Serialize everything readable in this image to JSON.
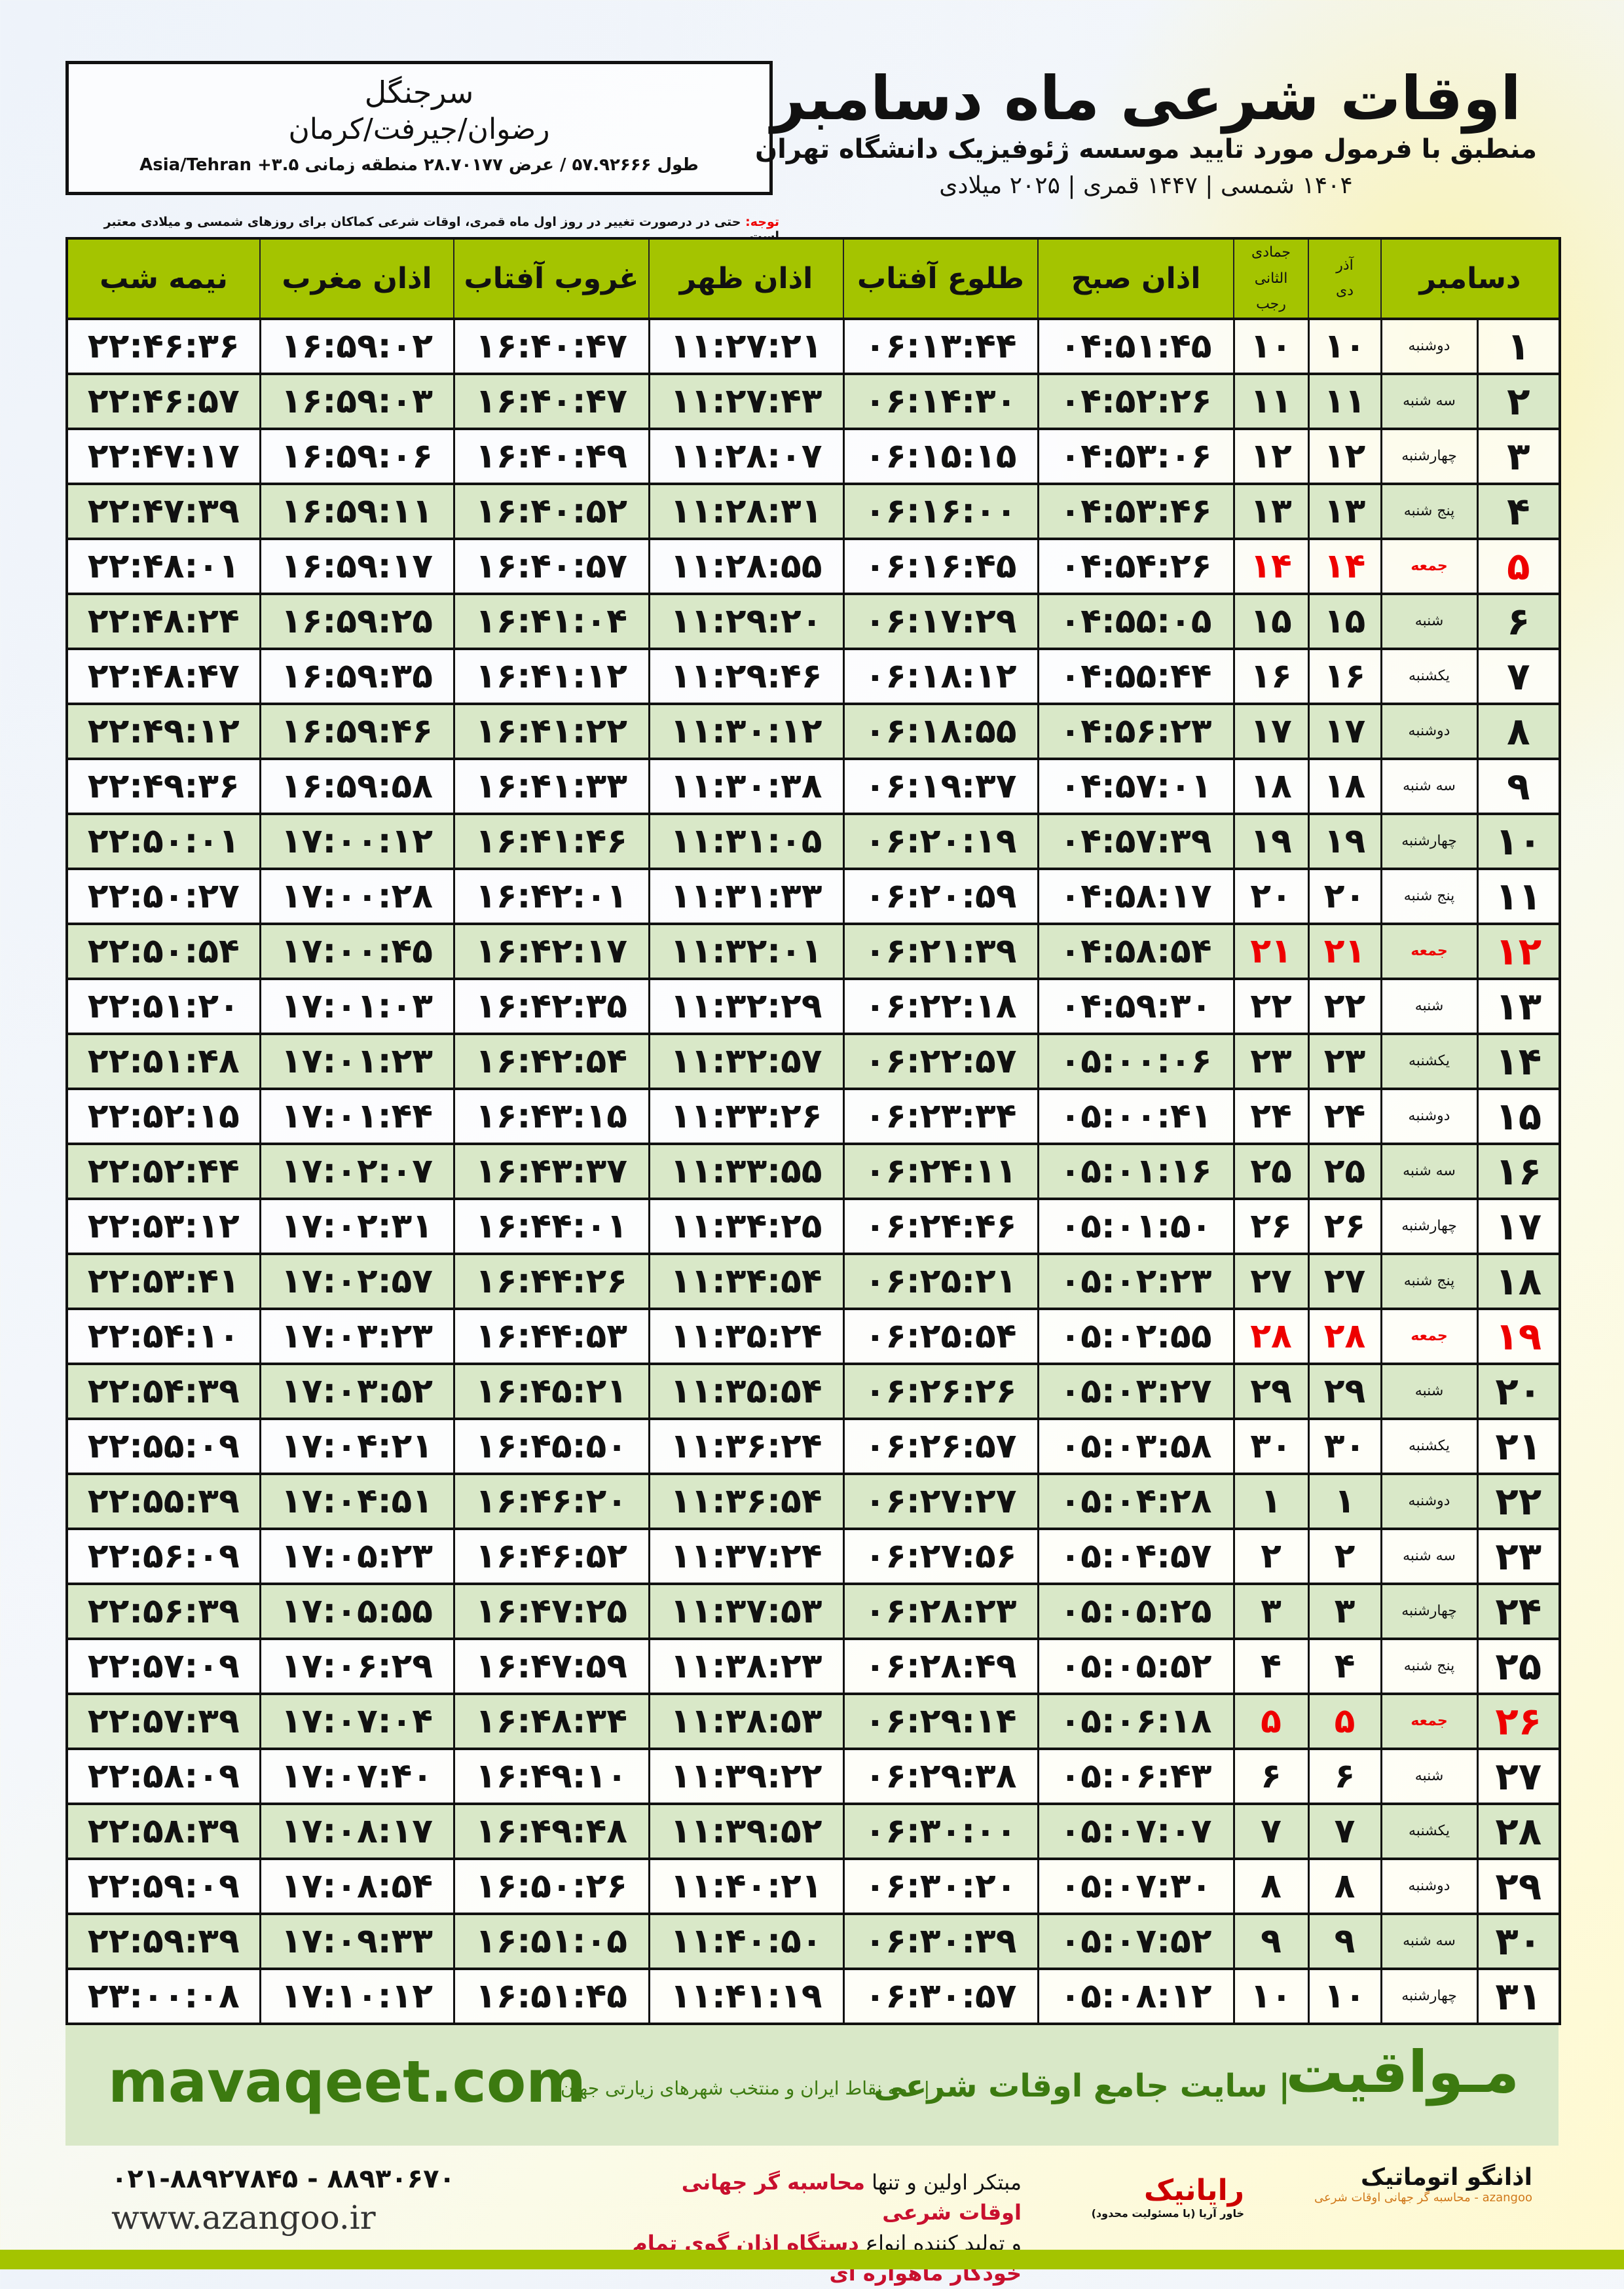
{
  "header": {
    "title": "اوقات شرعی ماه دسامبر",
    "subtitle": "منطبق با فرمول مورد تایید موسسه ژئوفیزیک دانشگاه تهران",
    "years": "۱۴۰۴ شمسی | ۱۴۴۷ قمری | ۲۰۲۵ میلادی"
  },
  "location": {
    "city": "سرجنگل",
    "region": "رضوان/جیرفت/کرمان",
    "coords": "طول ۵۷.۹۲۶۶۶ / عرض ۲۸.۷۰۱۷۷ منطقه زمانی ۳.۵+ Asia/Tehran"
  },
  "note": {
    "label": "توجه:",
    "text": " حتی در درصورت تغییر در روز اول ماه قمری، اوقات شرعی کماکان برای روزهای شمسی و میلادی معتبر است."
  },
  "columns": {
    "day": "دسامبر",
    "shamsi_month": "آذر",
    "shamsi_next": "دی",
    "hijri_month": "جمادی الثانی",
    "hijri_next": "رجب",
    "fajr": "اذان صبح",
    "sunrise": "طلوع آفتاب",
    "dhuhr": "اذان ظهر",
    "sunset": "غروب آفتاب",
    "maghrib": "اذان مغرب",
    "midnight": "نیمه شب"
  },
  "colors": {
    "header_green": "#a4c400",
    "row_green": "#d9e8c8",
    "friday_red": "#e00000",
    "brand_green": "#3c7a10"
  },
  "rows": [
    [
      "۱",
      "دوشنبه",
      "۱۰",
      "۱۰",
      "۰۴:۵۱:۴۵",
      "۰۶:۱۳:۴۴",
      "۱۱:۲۷:۲۱",
      "۱۶:۴۰:۴۷",
      "۱۶:۵۹:۰۲",
      "۲۲:۴۶:۳۶"
    ],
    [
      "۲",
      "سه شنبه",
      "۱۱",
      "۱۱",
      "۰۴:۵۲:۲۶",
      "۰۶:۱۴:۳۰",
      "۱۱:۲۷:۴۳",
      "۱۶:۴۰:۴۷",
      "۱۶:۵۹:۰۳",
      "۲۲:۴۶:۵۷"
    ],
    [
      "۳",
      "چهارشنبه",
      "۱۲",
      "۱۲",
      "۰۴:۵۳:۰۶",
      "۰۶:۱۵:۱۵",
      "۱۱:۲۸:۰۷",
      "۱۶:۴۰:۴۹",
      "۱۶:۵۹:۰۶",
      "۲۲:۴۷:۱۷"
    ],
    [
      "۴",
      "پنج شنبه",
      "۱۳",
      "۱۳",
      "۰۴:۵۳:۴۶",
      "۰۶:۱۶:۰۰",
      "۱۱:۲۸:۳۱",
      "۱۶:۴۰:۵۲",
      "۱۶:۵۹:۱۱",
      "۲۲:۴۷:۳۹"
    ],
    [
      "۵",
      "جمعه",
      "۱۴",
      "۱۴",
      "۰۴:۵۴:۲۶",
      "۰۶:۱۶:۴۵",
      "۱۱:۲۸:۵۵",
      "۱۶:۴۰:۵۷",
      "۱۶:۵۹:۱۷",
      "۲۲:۴۸:۰۱"
    ],
    [
      "۶",
      "شنبه",
      "۱۵",
      "۱۵",
      "۰۴:۵۵:۰۵",
      "۰۶:۱۷:۲۹",
      "۱۱:۲۹:۲۰",
      "۱۶:۴۱:۰۴",
      "۱۶:۵۹:۲۵",
      "۲۲:۴۸:۲۴"
    ],
    [
      "۷",
      "یکشنبه",
      "۱۶",
      "۱۶",
      "۰۴:۵۵:۴۴",
      "۰۶:۱۸:۱۲",
      "۱۱:۲۹:۴۶",
      "۱۶:۴۱:۱۲",
      "۱۶:۵۹:۳۵",
      "۲۲:۴۸:۴۷"
    ],
    [
      "۸",
      "دوشنبه",
      "۱۷",
      "۱۷",
      "۰۴:۵۶:۲۳",
      "۰۶:۱۸:۵۵",
      "۱۱:۳۰:۱۲",
      "۱۶:۴۱:۲۲",
      "۱۶:۵۹:۴۶",
      "۲۲:۴۹:۱۲"
    ],
    [
      "۹",
      "سه شنبه",
      "۱۸",
      "۱۸",
      "۰۴:۵۷:۰۱",
      "۰۶:۱۹:۳۷",
      "۱۱:۳۰:۳۸",
      "۱۶:۴۱:۳۳",
      "۱۶:۵۹:۵۸",
      "۲۲:۴۹:۳۶"
    ],
    [
      "۱۰",
      "چهارشنبه",
      "۱۹",
      "۱۹",
      "۰۴:۵۷:۳۹",
      "۰۶:۲۰:۱۹",
      "۱۱:۳۱:۰۵",
      "۱۶:۴۱:۴۶",
      "۱۷:۰۰:۱۲",
      "۲۲:۵۰:۰۱"
    ],
    [
      "۱۱",
      "پنج شنبه",
      "۲۰",
      "۲۰",
      "۰۴:۵۸:۱۷",
      "۰۶:۲۰:۵۹",
      "۱۱:۳۱:۳۳",
      "۱۶:۴۲:۰۱",
      "۱۷:۰۰:۲۸",
      "۲۲:۵۰:۲۷"
    ],
    [
      "۱۲",
      "جمعه",
      "۲۱",
      "۲۱",
      "۰۴:۵۸:۵۴",
      "۰۶:۲۱:۳۹",
      "۱۱:۳۲:۰۱",
      "۱۶:۴۲:۱۷",
      "۱۷:۰۰:۴۵",
      "۲۲:۵۰:۵۴"
    ],
    [
      "۱۳",
      "شنبه",
      "۲۲",
      "۲۲",
      "۰۴:۵۹:۳۰",
      "۰۶:۲۲:۱۸",
      "۱۱:۳۲:۲۹",
      "۱۶:۴۲:۳۵",
      "۱۷:۰۱:۰۳",
      "۲۲:۵۱:۲۰"
    ],
    [
      "۱۴",
      "یکشنبه",
      "۲۳",
      "۲۳",
      "۰۵:۰۰:۰۶",
      "۰۶:۲۲:۵۷",
      "۱۱:۳۲:۵۷",
      "۱۶:۴۲:۵۴",
      "۱۷:۰۱:۲۳",
      "۲۲:۵۱:۴۸"
    ],
    [
      "۱۵",
      "دوشنبه",
      "۲۴",
      "۲۴",
      "۰۵:۰۰:۴۱",
      "۰۶:۲۳:۳۴",
      "۱۱:۳۳:۲۶",
      "۱۶:۴۳:۱۵",
      "۱۷:۰۱:۴۴",
      "۲۲:۵۲:۱۵"
    ],
    [
      "۱۶",
      "سه شنبه",
      "۲۵",
      "۲۵",
      "۰۵:۰۱:۱۶",
      "۰۶:۲۴:۱۱",
      "۱۱:۳۳:۵۵",
      "۱۶:۴۳:۳۷",
      "۱۷:۰۲:۰۷",
      "۲۲:۵۲:۴۴"
    ],
    [
      "۱۷",
      "چهارشنبه",
      "۲۶",
      "۲۶",
      "۰۵:۰۱:۵۰",
      "۰۶:۲۴:۴۶",
      "۱۱:۳۴:۲۵",
      "۱۶:۴۴:۰۱",
      "۱۷:۰۲:۳۱",
      "۲۲:۵۳:۱۲"
    ],
    [
      "۱۸",
      "پنج شنبه",
      "۲۷",
      "۲۷",
      "۰۵:۰۲:۲۳",
      "۰۶:۲۵:۲۱",
      "۱۱:۳۴:۵۴",
      "۱۶:۴۴:۲۶",
      "۱۷:۰۲:۵۷",
      "۲۲:۵۳:۴۱"
    ],
    [
      "۱۹",
      "جمعه",
      "۲۸",
      "۲۸",
      "۰۵:۰۲:۵۵",
      "۰۶:۲۵:۵۴",
      "۱۱:۳۵:۲۴",
      "۱۶:۴۴:۵۳",
      "۱۷:۰۳:۲۳",
      "۲۲:۵۴:۱۰"
    ],
    [
      "۲۰",
      "شنبه",
      "۲۹",
      "۲۹",
      "۰۵:۰۳:۲۷",
      "۰۶:۲۶:۲۶",
      "۱۱:۳۵:۵۴",
      "۱۶:۴۵:۲۱",
      "۱۷:۰۳:۵۲",
      "۲۲:۵۴:۳۹"
    ],
    [
      "۲۱",
      "یکشنبه",
      "۳۰",
      "۳۰",
      "۰۵:۰۳:۵۸",
      "۰۶:۲۶:۵۷",
      "۱۱:۳۶:۲۴",
      "۱۶:۴۵:۵۰",
      "۱۷:۰۴:۲۱",
      "۲۲:۵۵:۰۹"
    ],
    [
      "۲۲",
      "دوشنبه",
      "۱",
      "۱",
      "۰۵:۰۴:۲۸",
      "۰۶:۲۷:۲۷",
      "۱۱:۳۶:۵۴",
      "۱۶:۴۶:۲۰",
      "۱۷:۰۴:۵۱",
      "۲۲:۵۵:۳۹"
    ],
    [
      "۲۳",
      "سه شنبه",
      "۲",
      "۲",
      "۰۵:۰۴:۵۷",
      "۰۶:۲۷:۵۶",
      "۱۱:۳۷:۲۴",
      "۱۶:۴۶:۵۲",
      "۱۷:۰۵:۲۳",
      "۲۲:۵۶:۰۹"
    ],
    [
      "۲۴",
      "چهارشنبه",
      "۳",
      "۳",
      "۰۵:۰۵:۲۵",
      "۰۶:۲۸:۲۳",
      "۱۱:۳۷:۵۳",
      "۱۶:۴۷:۲۵",
      "۱۷:۰۵:۵۵",
      "۲۲:۵۶:۳۹"
    ],
    [
      "۲۵",
      "پنج شنبه",
      "۴",
      "۴",
      "۰۵:۰۵:۵۲",
      "۰۶:۲۸:۴۹",
      "۱۱:۳۸:۲۳",
      "۱۶:۴۷:۵۹",
      "۱۷:۰۶:۲۹",
      "۲۲:۵۷:۰۹"
    ],
    [
      "۲۶",
      "جمعه",
      "۵",
      "۵",
      "۰۵:۰۶:۱۸",
      "۰۶:۲۹:۱۴",
      "۱۱:۳۸:۵۳",
      "۱۶:۴۸:۳۴",
      "۱۷:۰۷:۰۴",
      "۲۲:۵۷:۳۹"
    ],
    [
      "۲۷",
      "شنبه",
      "۶",
      "۶",
      "۰۵:۰۶:۴۳",
      "۰۶:۲۹:۳۸",
      "۱۱:۳۹:۲۲",
      "۱۶:۴۹:۱۰",
      "۱۷:۰۷:۴۰",
      "۲۲:۵۸:۰۹"
    ],
    [
      "۲۸",
      "یکشنبه",
      "۷",
      "۷",
      "۰۵:۰۷:۰۷",
      "۰۶:۳۰:۰۰",
      "۱۱:۳۹:۵۲",
      "۱۶:۴۹:۴۸",
      "۱۷:۰۸:۱۷",
      "۲۲:۵۸:۳۹"
    ],
    [
      "۲۹",
      "دوشنبه",
      "۸",
      "۸",
      "۰۵:۰۷:۳۰",
      "۰۶:۳۰:۲۰",
      "۱۱:۴۰:۲۱",
      "۱۶:۵۰:۲۶",
      "۱۷:۰۸:۵۴",
      "۲۲:۵۹:۰۹"
    ],
    [
      "۳۰",
      "سه شنبه",
      "۹",
      "۹",
      "۰۵:۰۷:۵۲",
      "۰۶:۳۰:۳۹",
      "۱۱:۴۰:۵۰",
      "۱۶:۵۱:۰۵",
      "۱۷:۰۹:۳۳",
      "۲۲:۵۹:۳۹"
    ],
    [
      "۳۱",
      "چهارشنبه",
      "۱۰",
      "۱۰",
      "۰۵:۰۸:۱۲",
      "۰۶:۳۰:۵۷",
      "۱۱:۴۱:۱۹",
      "۱۶:۵۱:۴۵",
      "۱۷:۱۰:۱۲",
      "۲۳:۰۰:۰۸"
    ]
  ],
  "banner": {
    "brand": "مـواقیت",
    "tagline": "| سایت جامع اوقات شرعی",
    "sub": "| همه نقاط ایران و منتخب شهرهای زیارتی جهان",
    "site": "mavaqeet.com"
  },
  "footer": {
    "logo1": "اذانگو اتوماتیک",
    "logo1_sub": "azangoo - محاسبه گر جهانی اوقات شرعی",
    "logo2": "رایانیک",
    "logo2_sub": "خاور آریا (با مسئولیت محدود)",
    "desc1_a": "مبتکر اولین و تنها ",
    "desc1_b": "محاسبه گر جهانی اوقات شرعی",
    "desc2_a": "و تولید کننده انواع ",
    "desc2_b": "دستگاه اذان گوی تمام خودکار ماهواره ای",
    "phones": "۰۲۱-۸۸۹۲۷۸۴۵ - ۸۸۹۳۰۶۷۰",
    "website": "www.azangoo.ir"
  }
}
